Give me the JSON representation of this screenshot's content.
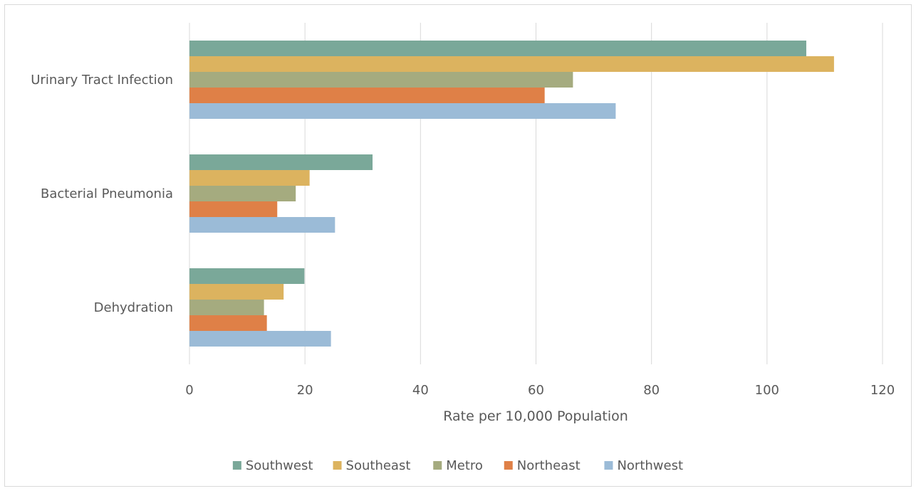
{
  "chart_data": {
    "type": "bar",
    "orientation": "horizontal",
    "categories": [
      "Urinary Tract Infection",
      "Bacterial Pneumonia",
      "Dehydration"
    ],
    "series": [
      {
        "name": "Southwest",
        "color": "#7aa899",
        "values": [
          106.8,
          31.7,
          19.9
        ]
      },
      {
        "name": "Southeast",
        "color": "#dcb35f",
        "values": [
          111.6,
          20.8,
          16.3
        ]
      },
      {
        "name": "Metro",
        "color": "#a5ab7f",
        "values": [
          66.4,
          18.4,
          12.9
        ]
      },
      {
        "name": "Northeast",
        "color": "#df8047",
        "values": [
          61.5,
          15.2,
          13.4
        ]
      },
      {
        "name": "Northwest",
        "color": "#9bbbd7",
        "values": [
          73.8,
          25.2,
          24.5
        ]
      }
    ],
    "xlabel": "Rate per 10,000 Population",
    "ylabel": "",
    "xlim": [
      0,
      120
    ],
    "xticks": [
      "0",
      "20",
      "40",
      "60",
      "80",
      "100",
      "120"
    ],
    "grid": "vertical",
    "legend_position": "bottom"
  }
}
